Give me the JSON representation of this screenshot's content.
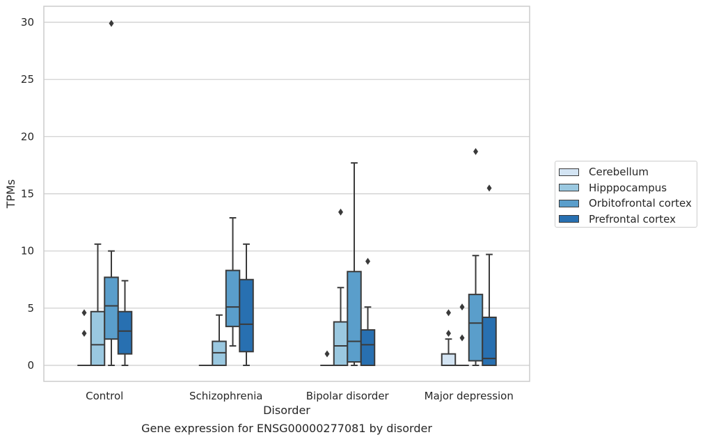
{
  "chart_data": {
    "type": "boxplot",
    "xlabel": "Disorder",
    "ylabel": "TPMs",
    "caption": "Gene expression for ENSG00000277081 by disorder",
    "ylim": [
      -1.4,
      31.4
    ],
    "yticks": [
      0,
      5,
      10,
      15,
      20,
      25,
      30
    ],
    "grid": true,
    "legend_position": "right",
    "categories": [
      "Control",
      "Schizophrenia",
      "Bipolar disorder",
      "Major depression"
    ],
    "series": [
      {
        "name": "Cerebellum",
        "color": "#d3e4f3",
        "boxes": [
          {
            "q1": 0,
            "median": 0,
            "q3": 0,
            "whisker_low": 0,
            "whisker_high": 0,
            "outliers": [
              4.6,
              2.8
            ]
          },
          {
            "q1": 0,
            "median": 0,
            "q3": 0,
            "whisker_low": 0,
            "whisker_high": 0,
            "outliers": []
          },
          {
            "q1": 0,
            "median": 0,
            "q3": 0,
            "whisker_low": 0,
            "whisker_high": 0,
            "outliers": [
              1.0
            ]
          },
          {
            "q1": 0,
            "median": 0,
            "q3": 1.0,
            "whisker_low": 0,
            "whisker_high": 2.3,
            "outliers": [
              4.6,
              2.8
            ]
          }
        ]
      },
      {
        "name": "Hipppocampus",
        "color": "#9ac8e0",
        "boxes": [
          {
            "q1": 0,
            "median": 1.8,
            "q3": 4.7,
            "whisker_low": 0,
            "whisker_high": 10.6,
            "outliers": []
          },
          {
            "q1": 0,
            "median": 1.1,
            "q3": 2.1,
            "whisker_low": 0,
            "whisker_high": 4.4,
            "outliers": []
          },
          {
            "q1": 0,
            "median": 1.7,
            "q3": 3.8,
            "whisker_low": 0,
            "whisker_high": 6.8,
            "outliers": [
              13.4
            ]
          },
          {
            "q1": 0,
            "median": 0,
            "q3": 0,
            "whisker_low": 0,
            "whisker_high": 0,
            "outliers": [
              5.1,
              2.4
            ]
          }
        ]
      },
      {
        "name": "Orbitofrontal cortex",
        "color": "#5a9ecb",
        "boxes": [
          {
            "q1": 2.3,
            "median": 5.2,
            "q3": 7.7,
            "whisker_low": 0,
            "whisker_high": 10.0,
            "outliers": [
              29.9
            ]
          },
          {
            "q1": 3.4,
            "median": 5.1,
            "q3": 8.3,
            "whisker_low": 1.7,
            "whisker_high": 12.9,
            "outliers": []
          },
          {
            "q1": 0.3,
            "median": 2.1,
            "q3": 8.2,
            "whisker_low": 0,
            "whisker_high": 17.7,
            "outliers": []
          },
          {
            "q1": 0.4,
            "median": 3.7,
            "q3": 6.2,
            "whisker_low": 0,
            "whisker_high": 9.6,
            "outliers": [
              18.7
            ]
          }
        ]
      },
      {
        "name": "Prefrontal cortex",
        "color": "#2870b1",
        "boxes": [
          {
            "q1": 1.0,
            "median": 3.0,
            "q3": 4.7,
            "whisker_low": 0,
            "whisker_high": 7.4,
            "outliers": []
          },
          {
            "q1": 1.2,
            "median": 3.6,
            "q3": 7.5,
            "whisker_low": 0,
            "whisker_high": 10.6,
            "outliers": []
          },
          {
            "q1": 0,
            "median": 1.8,
            "q3": 3.1,
            "whisker_low": 0,
            "whisker_high": 5.1,
            "outliers": [
              9.1
            ]
          },
          {
            "q1": 0,
            "median": 0.6,
            "q3": 4.2,
            "whisker_low": 0,
            "whisker_high": 9.7,
            "outliers": [
              15.5
            ]
          }
        ]
      }
    ]
  },
  "colors": {
    "grid": "#cccccc",
    "frame": "#cccccc",
    "box_edge": "#3a3a3a",
    "text": "#262626"
  }
}
